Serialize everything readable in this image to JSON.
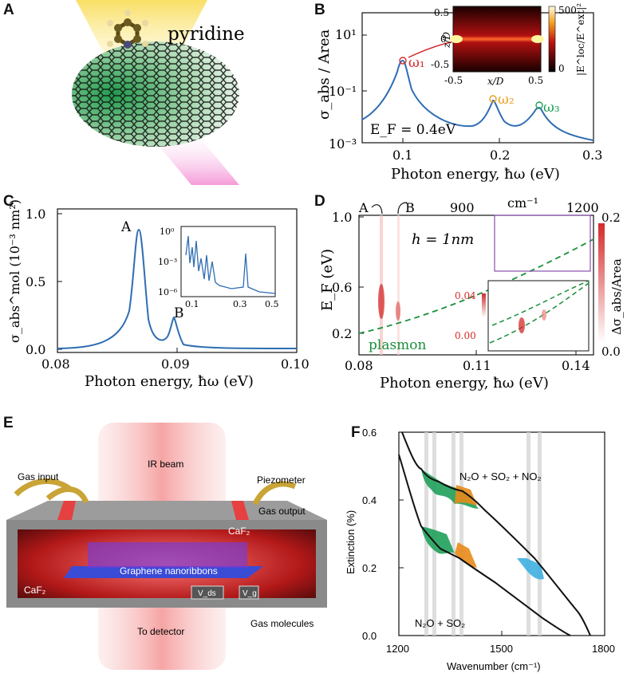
{
  "panels": {
    "a": {
      "letter": "A",
      "molecule": "pyridine"
    },
    "b": {
      "letter": "B",
      "ylabel": "σ_abs / Area",
      "xlabel": "Photon energy, ħω (eV)",
      "yticks": [
        "10¹",
        "10⁻¹",
        "10⁻³"
      ],
      "xticks": [
        "0.1",
        "0.2",
        "0.3"
      ],
      "omega1": "ω₁",
      "omega2": "ω₂",
      "omega3": "ω₃",
      "ef": "E_F = 0.4eV",
      "inset": {
        "ylabel": "z/D",
        "xlabel": "x/D",
        "yticks": [
          "0.5",
          "0",
          "-0.5"
        ],
        "xticks": [
          "-0.5",
          "0.5"
        ],
        "cbar_label": "|E^loc/E^ext|²",
        "cbar_ticks": [
          "500",
          "0"
        ]
      }
    },
    "c": {
      "letter": "C",
      "ylabel": "σ_abs^mol (10⁻³ nm²)",
      "xlabel": "Photon energy, ħω (eV)",
      "yticks": [
        "1.0",
        "0.5",
        "0.0"
      ],
      "xticks": [
        "0.08",
        "0.09",
        "0.10"
      ],
      "peakA": "A",
      "peakB": "B",
      "inset": {
        "yticks": [
          "10⁰",
          "10⁻³",
          "10⁻⁶"
        ],
        "xticks": [
          "0.1",
          "0.3",
          "0.5"
        ]
      }
    },
    "d": {
      "letter": "D",
      "ylabel": "E_F (eV)",
      "xlabel": "Photon energy, ħω (eV)",
      "yticks": [
        "1.0",
        "0.6",
        "0.2"
      ],
      "xticks": [
        "0.08",
        "0.11",
        "0.14"
      ],
      "top_ticks": [
        "900",
        "1200"
      ],
      "top_unit": "cm⁻¹",
      "labelA": "A",
      "labelB": "B",
      "h": "h = 1nm",
      "plasmon": "plasmon",
      "cbar_label": "Δσ_abs/Area",
      "cbar_ticks": [
        "0.2",
        "0.0"
      ],
      "inset_ticks": [
        "0.04",
        "0.00"
      ]
    },
    "e": {
      "letter": "E",
      "ir_beam": "IR beam",
      "gas_input": "Gas input",
      "piezometer": "Piezometer",
      "gas_output": "Gas output",
      "caf2_right": "CaF₂",
      "caf2_left": "CaF₂",
      "ribbons": "Graphene nanoribbons",
      "vds": "V_ds",
      "vg": "V_g",
      "detector": "To detector",
      "molecules": "Gas molecules"
    },
    "f": {
      "letter": "F",
      "ylabel": "Extinction (%)",
      "xlabel": "Wavenumber (cm⁻¹)",
      "yticks": [
        "0.6",
        "0.4",
        "0.2",
        "0.0"
      ],
      "xticks": [
        "1200",
        "1500",
        "1800"
      ],
      "label_top": "N₂O + SO₂ + NO₂",
      "label_bottom": "N₂O + SO₂"
    }
  },
  "colors": {
    "curve": "#2f6db3",
    "red": "#d42a2a",
    "orange": "#e8891a",
    "green": "#1fa05a",
    "purple": "#8a4fb0",
    "dash": "#1a8f3a"
  }
}
